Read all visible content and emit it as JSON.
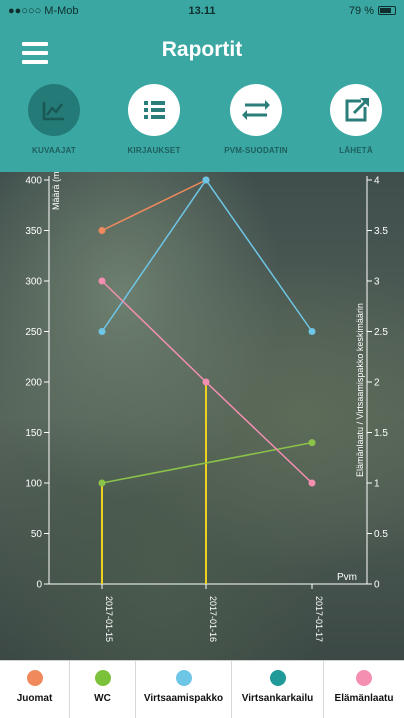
{
  "status": {
    "carrier": "●●○○○ M-Mob",
    "time": "13.11",
    "battery": "79 %",
    "battery_level": 0.79
  },
  "header": {
    "title": "Raportit"
  },
  "toolbar": [
    {
      "label": "KUVAAJAT",
      "icon": "chart-icon",
      "active": true
    },
    {
      "label": "KIRJAUKSET",
      "icon": "list-icon",
      "active": false
    },
    {
      "label": "PVM-SUODATIN",
      "icon": "filter-arrows-icon",
      "active": false
    },
    {
      "label": "LÄHETÄ",
      "icon": "share-icon",
      "active": false
    }
  ],
  "chart_data": {
    "type": "line",
    "ylabel": "Määrä (ml)",
    "y2label": "Elämänlaatu / Virtsaamispakko keskimäärin",
    "xlabel": "Pvm",
    "ylim": [
      0,
      400
    ],
    "y2lim": [
      0,
      4
    ],
    "y_ticks": [
      "0",
      "50",
      "100",
      "150",
      "200",
      "250",
      "300",
      "350",
      "400"
    ],
    "y2_ticks": [
      "0",
      "0.5",
      "1",
      "1.5",
      "2",
      "2.5",
      "3",
      "3.5",
      "4"
    ],
    "categories": [
      "2017-01-15",
      "2017-01-16",
      "2017-01-17"
    ],
    "series": [
      {
        "name": "Juomat",
        "color": "#f08a5d",
        "axis": "left",
        "values": [
          350,
          400,
          null
        ]
      },
      {
        "name": "WC",
        "color": "#8bc34a",
        "axis": "left",
        "values": [
          100,
          null,
          140
        ]
      },
      {
        "name": "Virtsaamispakko",
        "color": "#6ec6e6",
        "axis": "right",
        "values": [
          2.5,
          4,
          2.5
        ]
      },
      {
        "name": "Virtsankarkailu",
        "color": "#26a69a",
        "axis": "left",
        "values": [
          null,
          null,
          null
        ]
      },
      {
        "name": "Elämänlaatu",
        "color": "#f48fb1",
        "axis": "right",
        "values": [
          3,
          2,
          1
        ]
      }
    ],
    "bars": {
      "color": "#f0d020",
      "values": [
        100,
        200,
        null
      ]
    }
  },
  "legend": [
    {
      "name": "Juomat",
      "color": "#f08a5d"
    },
    {
      "name": "WC",
      "color": "#7cc13a"
    },
    {
      "name": "Virtsaamispakko",
      "color": "#6ec6e6"
    },
    {
      "name": "Virtsankarkailu",
      "color": "#1f9a98"
    },
    {
      "name": "Elämänlaatu",
      "color": "#f48fb1"
    }
  ]
}
